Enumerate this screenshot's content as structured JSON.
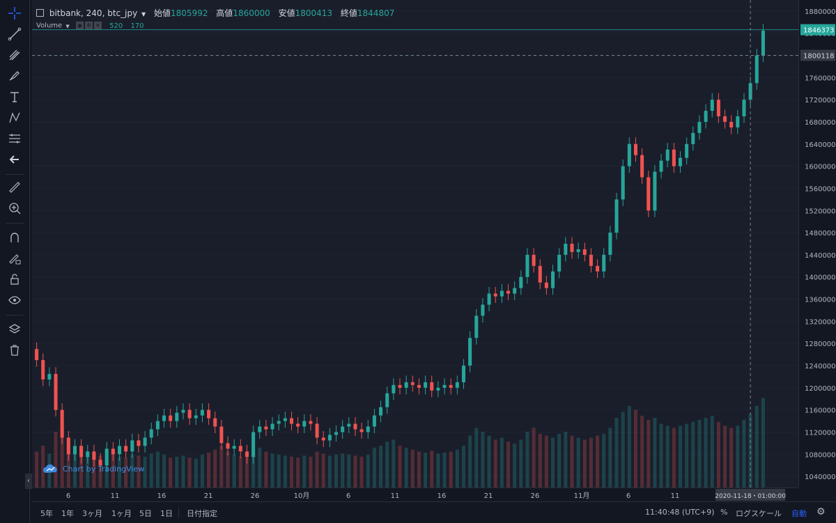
{
  "header": {
    "exchange": "bitbank",
    "interval": "240",
    "symbol": "btc_jpy",
    "open_label": "始値",
    "open_value": "1805992",
    "high_label": "高値",
    "high_value": "1860000",
    "low_label": "安値",
    "low_value": "1800413",
    "close_label": "終値",
    "close_value": "1844807"
  },
  "volume_legend": {
    "label": "Volume",
    "value1": "520",
    "value2": "170"
  },
  "watermark": "Chart by TradingView",
  "price_axis": {
    "ticks": [
      "1880000",
      "1840000",
      "1800000",
      "1760000",
      "1720000",
      "1680000",
      "1640000",
      "1600000",
      "1560000",
      "1520000",
      "1480000",
      "1440000",
      "1400000",
      "1360000",
      "1320000",
      "1280000",
      "1240000",
      "1200000",
      "1160000",
      "1120000",
      "1080000",
      "1040000"
    ],
    "last_price_label": "1846373",
    "crosshair_price_label": "1800118"
  },
  "time_axis": {
    "ticks": [
      "6",
      "11",
      "16",
      "21",
      "26",
      "10月",
      "6",
      "11",
      "16",
      "21",
      "26",
      "11月",
      "6",
      "11"
    ],
    "crosshair_time_label": "2020-11-18・01:00:00"
  },
  "bottom_bar": {
    "ranges": [
      "5年",
      "1年",
      "3ヶ月",
      "1ヶ月",
      "5日",
      "1日"
    ],
    "date_jump": "日付指定",
    "clock": "11:40:48 (UTC+9)",
    "percent": "%",
    "log_scale": "ログスケール",
    "auto": "自動"
  },
  "colors": {
    "up": "#26a69a",
    "down": "#ef5350",
    "background": "#1a1e2b",
    "axis_bg": "#131722",
    "grid": "#1f2433"
  },
  "chart_data": {
    "type": "candlestick",
    "symbol": "btc_jpy",
    "x_range": [
      "2020-09-02",
      "2020-11-18"
    ],
    "ylim": [
      1020000,
      1900000
    ],
    "series": [
      {
        "values": [
          [
            1270000,
            1250000
          ],
          [
            1250000,
            1215000
          ],
          [
            1215000,
            1225000
          ],
          [
            1225000,
            1160000
          ],
          [
            1160000,
            1110000
          ],
          [
            1110000,
            1080000
          ],
          [
            1080000,
            1095000
          ],
          [
            1095000,
            1075000
          ],
          [
            1075000,
            1085000
          ],
          [
            1085000,
            1070000
          ],
          [
            1070000,
            1060000
          ],
          [
            1060000,
            1090000
          ],
          [
            1090000,
            1080000
          ],
          [
            1080000,
            1095000
          ],
          [
            1095000,
            1085000
          ],
          [
            1085000,
            1105000
          ],
          [
            1105000,
            1095000
          ],
          [
            1095000,
            1110000
          ],
          [
            1110000,
            1125000
          ],
          [
            1125000,
            1140000
          ],
          [
            1140000,
            1150000
          ],
          [
            1150000,
            1140000
          ],
          [
            1140000,
            1155000
          ],
          [
            1155000,
            1160000
          ],
          [
            1160000,
            1145000
          ],
          [
            1145000,
            1150000
          ],
          [
            1150000,
            1160000
          ],
          [
            1160000,
            1145000
          ],
          [
            1145000,
            1130000
          ],
          [
            1130000,
            1100000
          ],
          [
            1100000,
            1090000
          ],
          [
            1090000,
            1095000
          ],
          [
            1095000,
            1085000
          ],
          [
            1085000,
            1075000
          ],
          [
            1075000,
            1120000
          ],
          [
            1120000,
            1130000
          ],
          [
            1130000,
            1125000
          ],
          [
            1125000,
            1135000
          ],
          [
            1135000,
            1140000
          ],
          [
            1140000,
            1145000
          ],
          [
            1145000,
            1135000
          ],
          [
            1135000,
            1130000
          ],
          [
            1130000,
            1140000
          ],
          [
            1140000,
            1135000
          ],
          [
            1135000,
            1110000
          ],
          [
            1110000,
            1105000
          ],
          [
            1105000,
            1115000
          ],
          [
            1115000,
            1120000
          ],
          [
            1120000,
            1130000
          ],
          [
            1130000,
            1135000
          ],
          [
            1135000,
            1125000
          ],
          [
            1125000,
            1120000
          ],
          [
            1120000,
            1130000
          ],
          [
            1130000,
            1150000
          ],
          [
            1150000,
            1165000
          ],
          [
            1165000,
            1190000
          ],
          [
            1190000,
            1205000
          ],
          [
            1205000,
            1200000
          ],
          [
            1200000,
            1210000
          ],
          [
            1210000,
            1205000
          ],
          [
            1205000,
            1200000
          ],
          [
            1200000,
            1210000
          ],
          [
            1210000,
            1195000
          ],
          [
            1195000,
            1200000
          ],
          [
            1200000,
            1205000
          ],
          [
            1205000,
            1200000
          ],
          [
            1200000,
            1210000
          ],
          [
            1210000,
            1240000
          ],
          [
            1240000,
            1290000
          ],
          [
            1290000,
            1330000
          ],
          [
            1330000,
            1350000
          ],
          [
            1350000,
            1370000
          ],
          [
            1370000,
            1365000
          ],
          [
            1365000,
            1375000
          ],
          [
            1375000,
            1370000
          ],
          [
            1370000,
            1380000
          ],
          [
            1380000,
            1400000
          ],
          [
            1400000,
            1440000
          ],
          [
            1440000,
            1420000
          ],
          [
            1420000,
            1390000
          ],
          [
            1390000,
            1380000
          ],
          [
            1380000,
            1410000
          ],
          [
            1410000,
            1440000
          ],
          [
            1440000,
            1460000
          ],
          [
            1460000,
            1445000
          ],
          [
            1445000,
            1450000
          ],
          [
            1450000,
            1440000
          ],
          [
            1440000,
            1420000
          ],
          [
            1420000,
            1410000
          ],
          [
            1410000,
            1440000
          ],
          [
            1440000,
            1480000
          ],
          [
            1480000,
            1540000
          ],
          [
            1540000,
            1600000
          ],
          [
            1600000,
            1640000
          ],
          [
            1640000,
            1620000
          ],
          [
            1620000,
            1580000
          ],
          [
            1580000,
            1520000
          ],
          [
            1520000,
            1590000
          ],
          [
            1590000,
            1610000
          ],
          [
            1610000,
            1630000
          ],
          [
            1630000,
            1600000
          ],
          [
            1600000,
            1615000
          ],
          [
            1615000,
            1640000
          ],
          [
            1640000,
            1660000
          ],
          [
            1660000,
            1680000
          ],
          [
            1680000,
            1700000
          ],
          [
            1700000,
            1720000
          ],
          [
            1720000,
            1690000
          ],
          [
            1690000,
            1680000
          ],
          [
            1680000,
            1670000
          ],
          [
            1670000,
            1690000
          ],
          [
            1690000,
            1720000
          ],
          [
            1720000,
            1750000
          ],
          [
            1750000,
            1800000
          ],
          [
            1800000,
            1844807
          ]
        ]
      }
    ],
    "volume": [
      360,
      420,
      340,
      560,
      600,
      480,
      390,
      420,
      360,
      330,
      320,
      380,
      340,
      310,
      300,
      330,
      320,
      310,
      340,
      360,
      330,
      300,
      310,
      320,
      300,
      290,
      330,
      350,
      380,
      420,
      360,
      330,
      310,
      300,
      380,
      400,
      360,
      340,
      330,
      320,
      310,
      300,
      320,
      310,
      360,
      340,
      320,
      330,
      340,
      330,
      320,
      310,
      330,
      400,
      420,
      460,
      480,
      420,
      400,
      380,
      360,
      350,
      370,
      340,
      350,
      360,
      380,
      420,
      520,
      600,
      560,
      520,
      480,
      500,
      460,
      440,
      480,
      560,
      600,
      540,
      520,
      500,
      540,
      560,
      520,
      500,
      480,
      500,
      520,
      540,
      600,
      700,
      760,
      820,
      780,
      720,
      680,
      700,
      640,
      620,
      600,
      620,
      640,
      660,
      680,
      700,
      720,
      660,
      620,
      600,
      620,
      680,
      740,
      820,
      900
    ],
    "volume_scale_max": 1400,
    "last_price": 1846373,
    "crosshair_price": 1800118,
    "crosshair_time": "2020-11-18・01:00:00",
    "xlabel": "",
    "ylabel": ""
  }
}
